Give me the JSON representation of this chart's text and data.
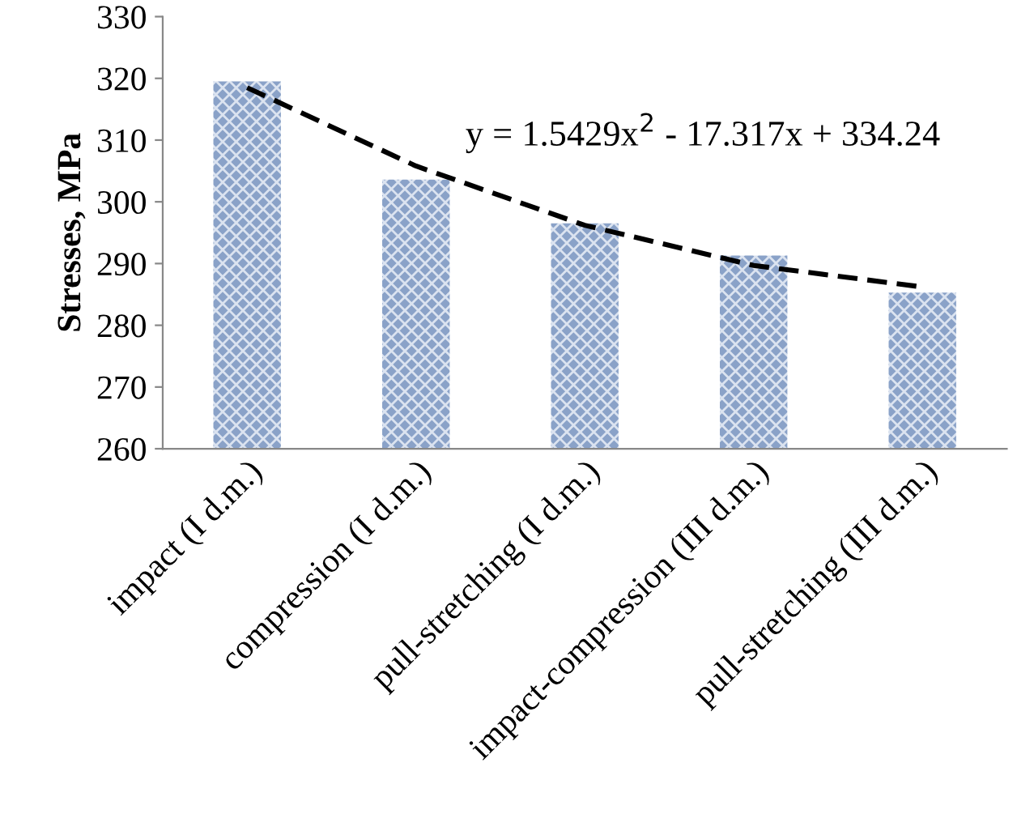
{
  "chart_data": {
    "type": "bar",
    "ylabel": "Stresses, MPa",
    "categories": [
      "impact (I d.m.)",
      "compression (I d.m.)",
      "pull-stretching (I d.m.)",
      "impact-compression (III d.m.)",
      "pull-stretching (III d.m.)"
    ],
    "series": [
      {
        "color": "#8aa2c8",
        "values": [
          319.5,
          303.6,
          296.5,
          291.3,
          285.3
        ]
      },
      {
        "type": "line",
        "color": "#000000",
        "line_style": "dashed",
        "values": [
          318.5,
          305.8,
          296.2,
          289.7,
          286.2
        ]
      }
    ],
    "ylim": [
      260,
      330
    ],
    "yticks": [
      260,
      270,
      280,
      290,
      300,
      310,
      320,
      330
    ],
    "annotations": [
      "y = 1.5429x$^{2}$ - 17.317x + 334.24"
    ],
    "grid": false,
    "legend": false
  }
}
